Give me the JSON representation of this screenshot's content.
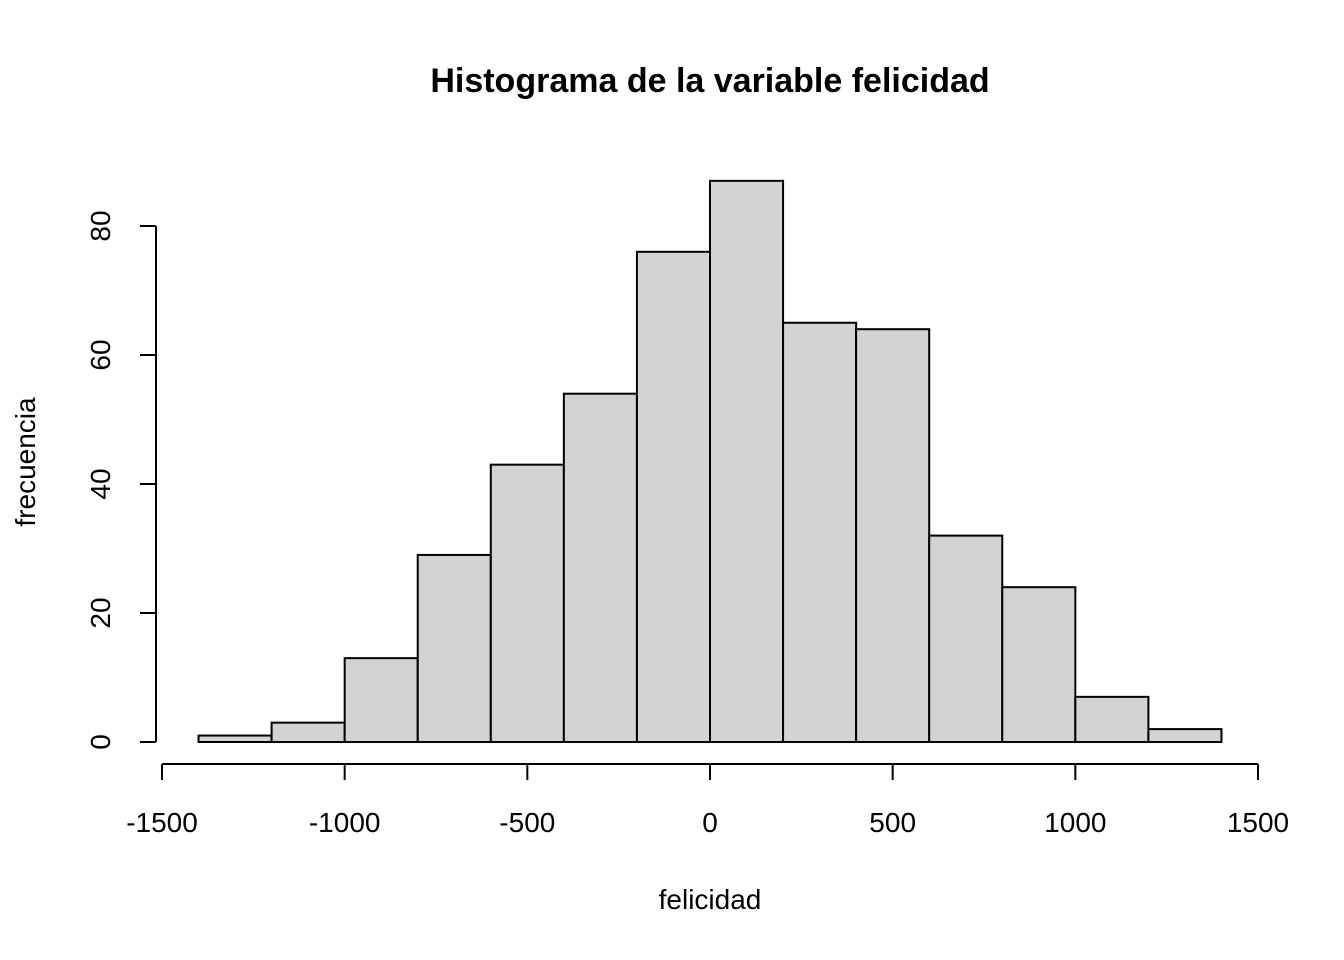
{
  "chart_data": {
    "type": "bar",
    "title": "Histograma de la variable felicidad",
    "xlabel": "felicidad",
    "ylabel": "frecuencia",
    "bin_edges": [
      -1400,
      -1200,
      -1000,
      -800,
      -600,
      -400,
      -200,
      0,
      200,
      400,
      600,
      800,
      1000,
      1200,
      1400
    ],
    "values": [
      1,
      3,
      13,
      29,
      43,
      54,
      76,
      87,
      65,
      64,
      32,
      24,
      7,
      2
    ],
    "xlim": [
      -1500,
      1500
    ],
    "ylim": [
      0,
      80
    ],
    "x_ticks": [
      -1500,
      -1000,
      -500,
      0,
      500,
      1000,
      1500
    ],
    "x_tick_labels": [
      "-1500",
      "-1000",
      "-500",
      "0",
      "500",
      "1000",
      "1500"
    ],
    "y_ticks": [
      0,
      20,
      40,
      60,
      80
    ],
    "y_tick_labels": [
      "0",
      "20",
      "40",
      "60",
      "80"
    ],
    "bar_color": "#d3d3d3",
    "edge_color": "#000000",
    "grid": false
  }
}
